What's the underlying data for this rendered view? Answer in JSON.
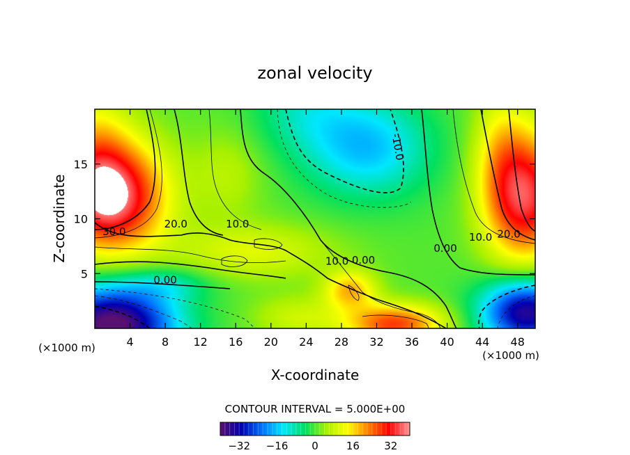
{
  "chart_data": {
    "type": "heatmap",
    "subtype": "filled-contour",
    "title": "zonal velocity",
    "xlabel": "X-coordinate",
    "ylabel": "Z-coordinate",
    "x_unit_label": "(×1000 m)",
    "x_unit_label_right": "(×1000 m)",
    "xlim": [
      0,
      50
    ],
    "ylim": [
      0,
      20
    ],
    "x_ticks": [
      4,
      8,
      12,
      16,
      20,
      24,
      28,
      32,
      36,
      40,
      44,
      48
    ],
    "y_ticks": [
      5,
      10,
      15
    ],
    "contour_interval_text": "CONTOUR INTERVAL = 5.000E+00",
    "colorbar": {
      "ticks": [
        "−32",
        "−16",
        "0",
        "16",
        "32"
      ],
      "range": [
        -40,
        40
      ],
      "colors": [
        "#5a1070",
        "#0000b0",
        "#0070ff",
        "#00e6ff",
        "#00e060",
        "#a8f000",
        "#ffff00",
        "#ff8000",
        "#ff0000",
        "#ff9898"
      ]
    },
    "contour_labels": [
      {
        "text": "30.0",
        "x": 2.2,
        "y": 8.5
      },
      {
        "text": "20.0",
        "x": 9.2,
        "y": 9.2
      },
      {
        "text": "10.0",
        "x": 16.2,
        "y": 9.2
      },
      {
        "text": "0.00",
        "x": 8.0,
        "y": 4.1
      },
      {
        "text": "10.0",
        "x": 27.5,
        "y": 5.8
      },
      {
        "text": "0.00",
        "x": 30.5,
        "y": 5.9
      },
      {
        "text": "-10.0",
        "x": 34.0,
        "y": 16.5
      },
      {
        "text": "0.00",
        "x": 39.8,
        "y": 7.0
      },
      {
        "text": "10.0",
        "x": 43.8,
        "y": 8.0
      },
      {
        "text": "20.0",
        "x": 47.0,
        "y": 8.3
      }
    ],
    "field_features": [
      {
        "x": 2,
        "y": 12,
        "value": 40,
        "note": "max on left"
      },
      {
        "x": 48,
        "y": 12,
        "value": 36
      },
      {
        "x": 2,
        "y": 0.5,
        "value": -38
      },
      {
        "x": 48,
        "y": 1.5,
        "value": -33
      },
      {
        "x": 30,
        "y": 16,
        "value": -14
      },
      {
        "x": 34,
        "y": 0.6,
        "value": 27
      },
      {
        "x": 29,
        "y": 3.5,
        "value": 22
      }
    ]
  }
}
